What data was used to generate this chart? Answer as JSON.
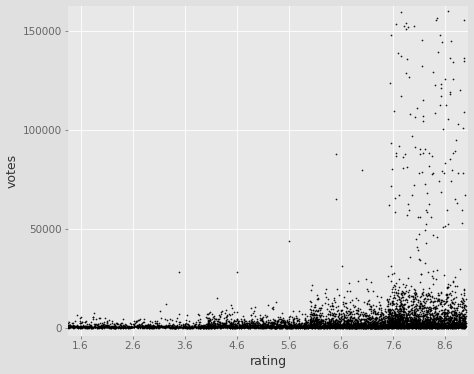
{
  "title": "",
  "xlabel": "rating",
  "ylabel": "votes",
  "plot_bg_color": "#E8E8E8",
  "fig_bg_color": "#E0E0E0",
  "grid_color": "#FFFFFF",
  "dot_color": "#000000",
  "dot_size": 1.5,
  "dot_alpha": 0.9,
  "xlim": [
    1.35,
    9.05
  ],
  "ylim": [
    -4000,
    163000
  ],
  "xticks": [
    1.6,
    2.6,
    3.6,
    4.6,
    5.6,
    6.6,
    7.6,
    8.6
  ],
  "yticks": [
    0,
    50000,
    100000,
    150000
  ],
  "ytick_labels": [
    "0",
    "50000",
    "100000",
    "150000"
  ],
  "tick_fontsize": 7.5,
  "label_fontsize": 9,
  "seed": 42,
  "n_points": 4000
}
